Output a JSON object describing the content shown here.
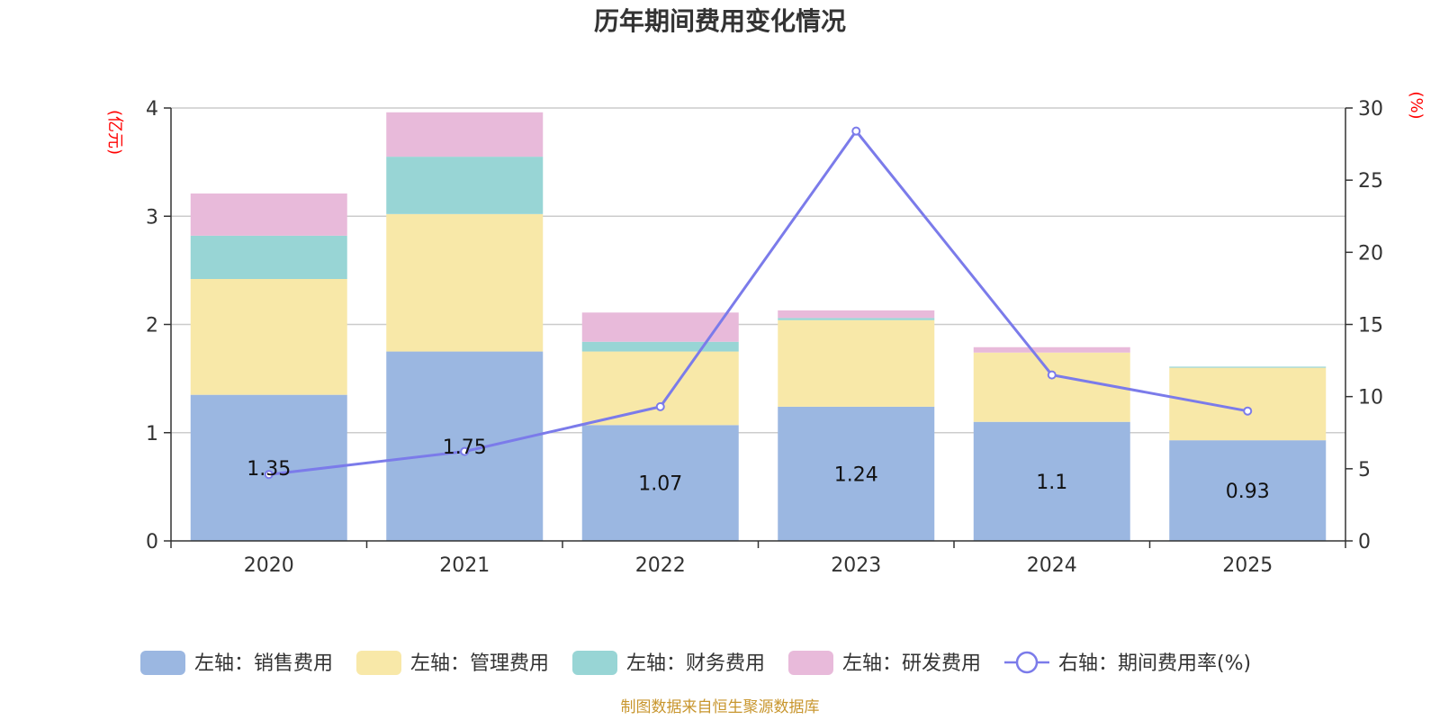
{
  "chart_data": {
    "type": "bar",
    "title": "历年期间费用变化情况",
    "categories": [
      "2020",
      "2021",
      "2022",
      "2023",
      "2024",
      "2025"
    ],
    "left_axis": {
      "unit": "(亿元)",
      "ylim": [
        0,
        4
      ],
      "ticks": [
        "0",
        "1",
        "2",
        "3",
        "4"
      ]
    },
    "right_axis": {
      "unit": "(%)",
      "ylim": [
        0,
        30
      ],
      "ticks": [
        "0",
        "5",
        "10",
        "15",
        "20",
        "25",
        "30"
      ]
    },
    "series": [
      {
        "name": "左轴：销售费用",
        "type": "bar",
        "axis": "left",
        "color": "#9bb7e1",
        "values": [
          1.35,
          1.75,
          1.07,
          1.24,
          1.1,
          0.93
        ],
        "labels": [
          "1.35",
          "1.75",
          "1.07",
          "1.24",
          "1.1",
          "0.93"
        ]
      },
      {
        "name": "左轴：管理费用",
        "type": "bar",
        "axis": "left",
        "color": "#f8e8a8",
        "values": [
          1.07,
          1.27,
          0.68,
          0.8,
          0.64,
          0.67
        ]
      },
      {
        "name": "左轴：财务费用",
        "type": "bar",
        "axis": "left",
        "color": "#98d5d5",
        "values": [
          0.4,
          0.53,
          0.09,
          0.02,
          0.0,
          0.01
        ]
      },
      {
        "name": "左轴：研发费用",
        "type": "bar",
        "axis": "left",
        "color": "#e8bada",
        "values": [
          0.39,
          0.41,
          0.27,
          0.07,
          0.05,
          0.0
        ]
      },
      {
        "name": "右轴：期间费用率(%)",
        "type": "line",
        "axis": "right",
        "color": "#7b7bea",
        "values": [
          4.6,
          6.2,
          9.3,
          28.4,
          11.5,
          9.0
        ]
      }
    ],
    "grid": true,
    "legend_position": "bottom"
  },
  "source_text": "制图数据来自恒生聚源数据库"
}
